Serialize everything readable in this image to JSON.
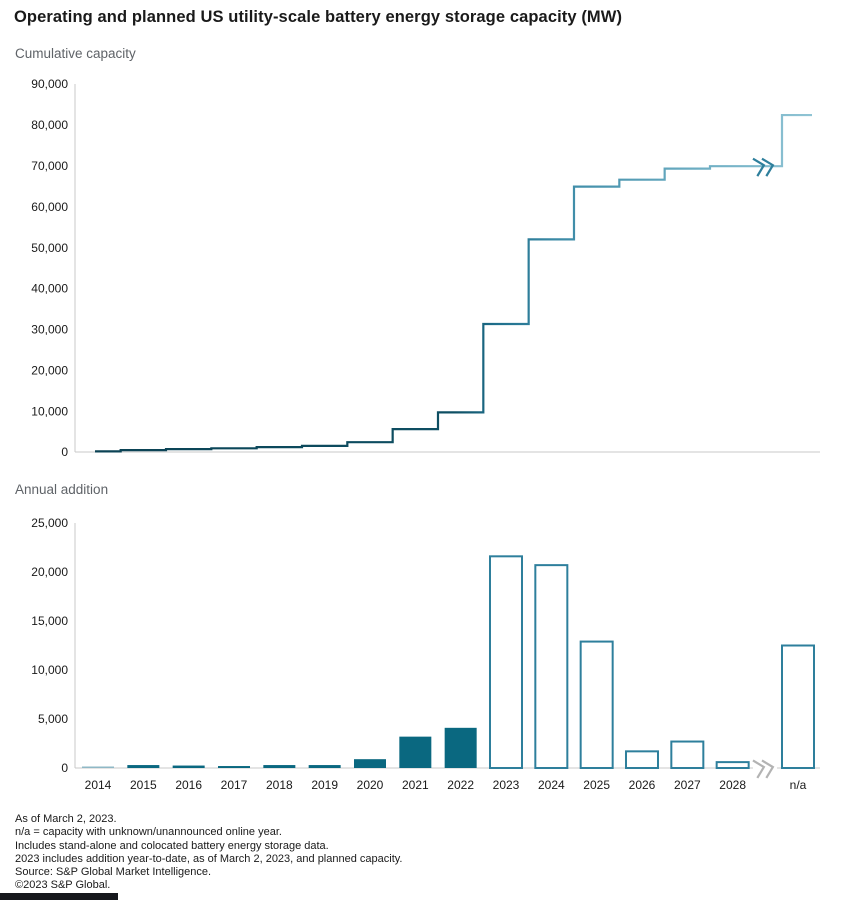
{
  "title": "Operating and planned US utility-scale battery energy storage capacity (MW)",
  "chart_data": [
    {
      "type": "line",
      "subtype": "step",
      "title": "Cumulative capacity",
      "categories": [
        "2014",
        "2015",
        "2016",
        "2017",
        "2018",
        "2019",
        "2020",
        "2021",
        "2022",
        "2023",
        "2024",
        "2025",
        "2026",
        "2027",
        "2028",
        "n/a"
      ],
      "values": [
        150,
        450,
        700,
        900,
        1200,
        1500,
        2400,
        5600,
        9700,
        31300,
        52000,
        64900,
        66600,
        69300,
        69900,
        82400
      ],
      "ylim": [
        0,
        90000
      ],
      "ytick_labels": [
        "0",
        "10,000",
        "20,000",
        "30,000",
        "40,000",
        "50,000",
        "60,000",
        "70,000",
        "80,000",
        "90,000"
      ],
      "xlabel": "",
      "ylabel": "",
      "grid": false,
      "legend": "none",
      "x_axis_labels_shown": false,
      "axis_break_before": "n/a",
      "line_gradient": [
        "#0b4254",
        "#0e4f63",
        "#1f6f8c",
        "#3a89a5",
        "#6fafc4",
        "#90c4d4"
      ]
    },
    {
      "type": "bar",
      "title": "Annual addition",
      "categories": [
        "2014",
        "2015",
        "2016",
        "2017",
        "2018",
        "2019",
        "2020",
        "2021",
        "2022",
        "2023",
        "2024",
        "2025",
        "2026",
        "2027",
        "2028",
        "n/a"
      ],
      "values": [
        150,
        300,
        250,
        200,
        300,
        300,
        900,
        3200,
        4100,
        21600,
        20700,
        12900,
        1700,
        2700,
        600,
        12500
      ],
      "bar_styles": [
        "filled-light",
        "filled",
        "filled",
        "filled",
        "filled",
        "filled",
        "filled",
        "filled",
        "filled",
        "outline",
        "outline",
        "outline",
        "outline",
        "outline",
        "outline",
        "outline"
      ],
      "ylim": [
        0,
        25000
      ],
      "ytick_labels": [
        "0",
        "5,000",
        "10,000",
        "15,000",
        "20,000",
        "25,000"
      ],
      "xlabel": "",
      "ylabel": "",
      "grid": false,
      "legend": "none",
      "x_axis_labels_shown": true,
      "axis_break_before": "n/a"
    }
  ],
  "colors": {
    "bar_filled": "#0a6880",
    "bar_filled_light": "#8fb8c6",
    "bar_outline_stroke": "#2e7f9c",
    "bar_outline_fill": "#ffffff",
    "axis_line": "#c9c9c9",
    "tick_text": "#1a1a1a",
    "subtitle_text": "#5f6368",
    "break_mark_top_chart": "#2e7f9c",
    "break_mark_bottom_chart": "#b3b3b3",
    "brand_bar": "#16181d"
  },
  "footnotes": [
    "As of March 2, 2023.",
    "n/a = capacity with unknown/unannounced online year.",
    "Includes stand-alone and colocated battery energy storage data.",
    "2023 includes addition year-to-date, as of March 2, 2023, and planned capacity.",
    "Source: S&P Global Market Intelligence.",
    "©2023 S&P Global."
  ]
}
